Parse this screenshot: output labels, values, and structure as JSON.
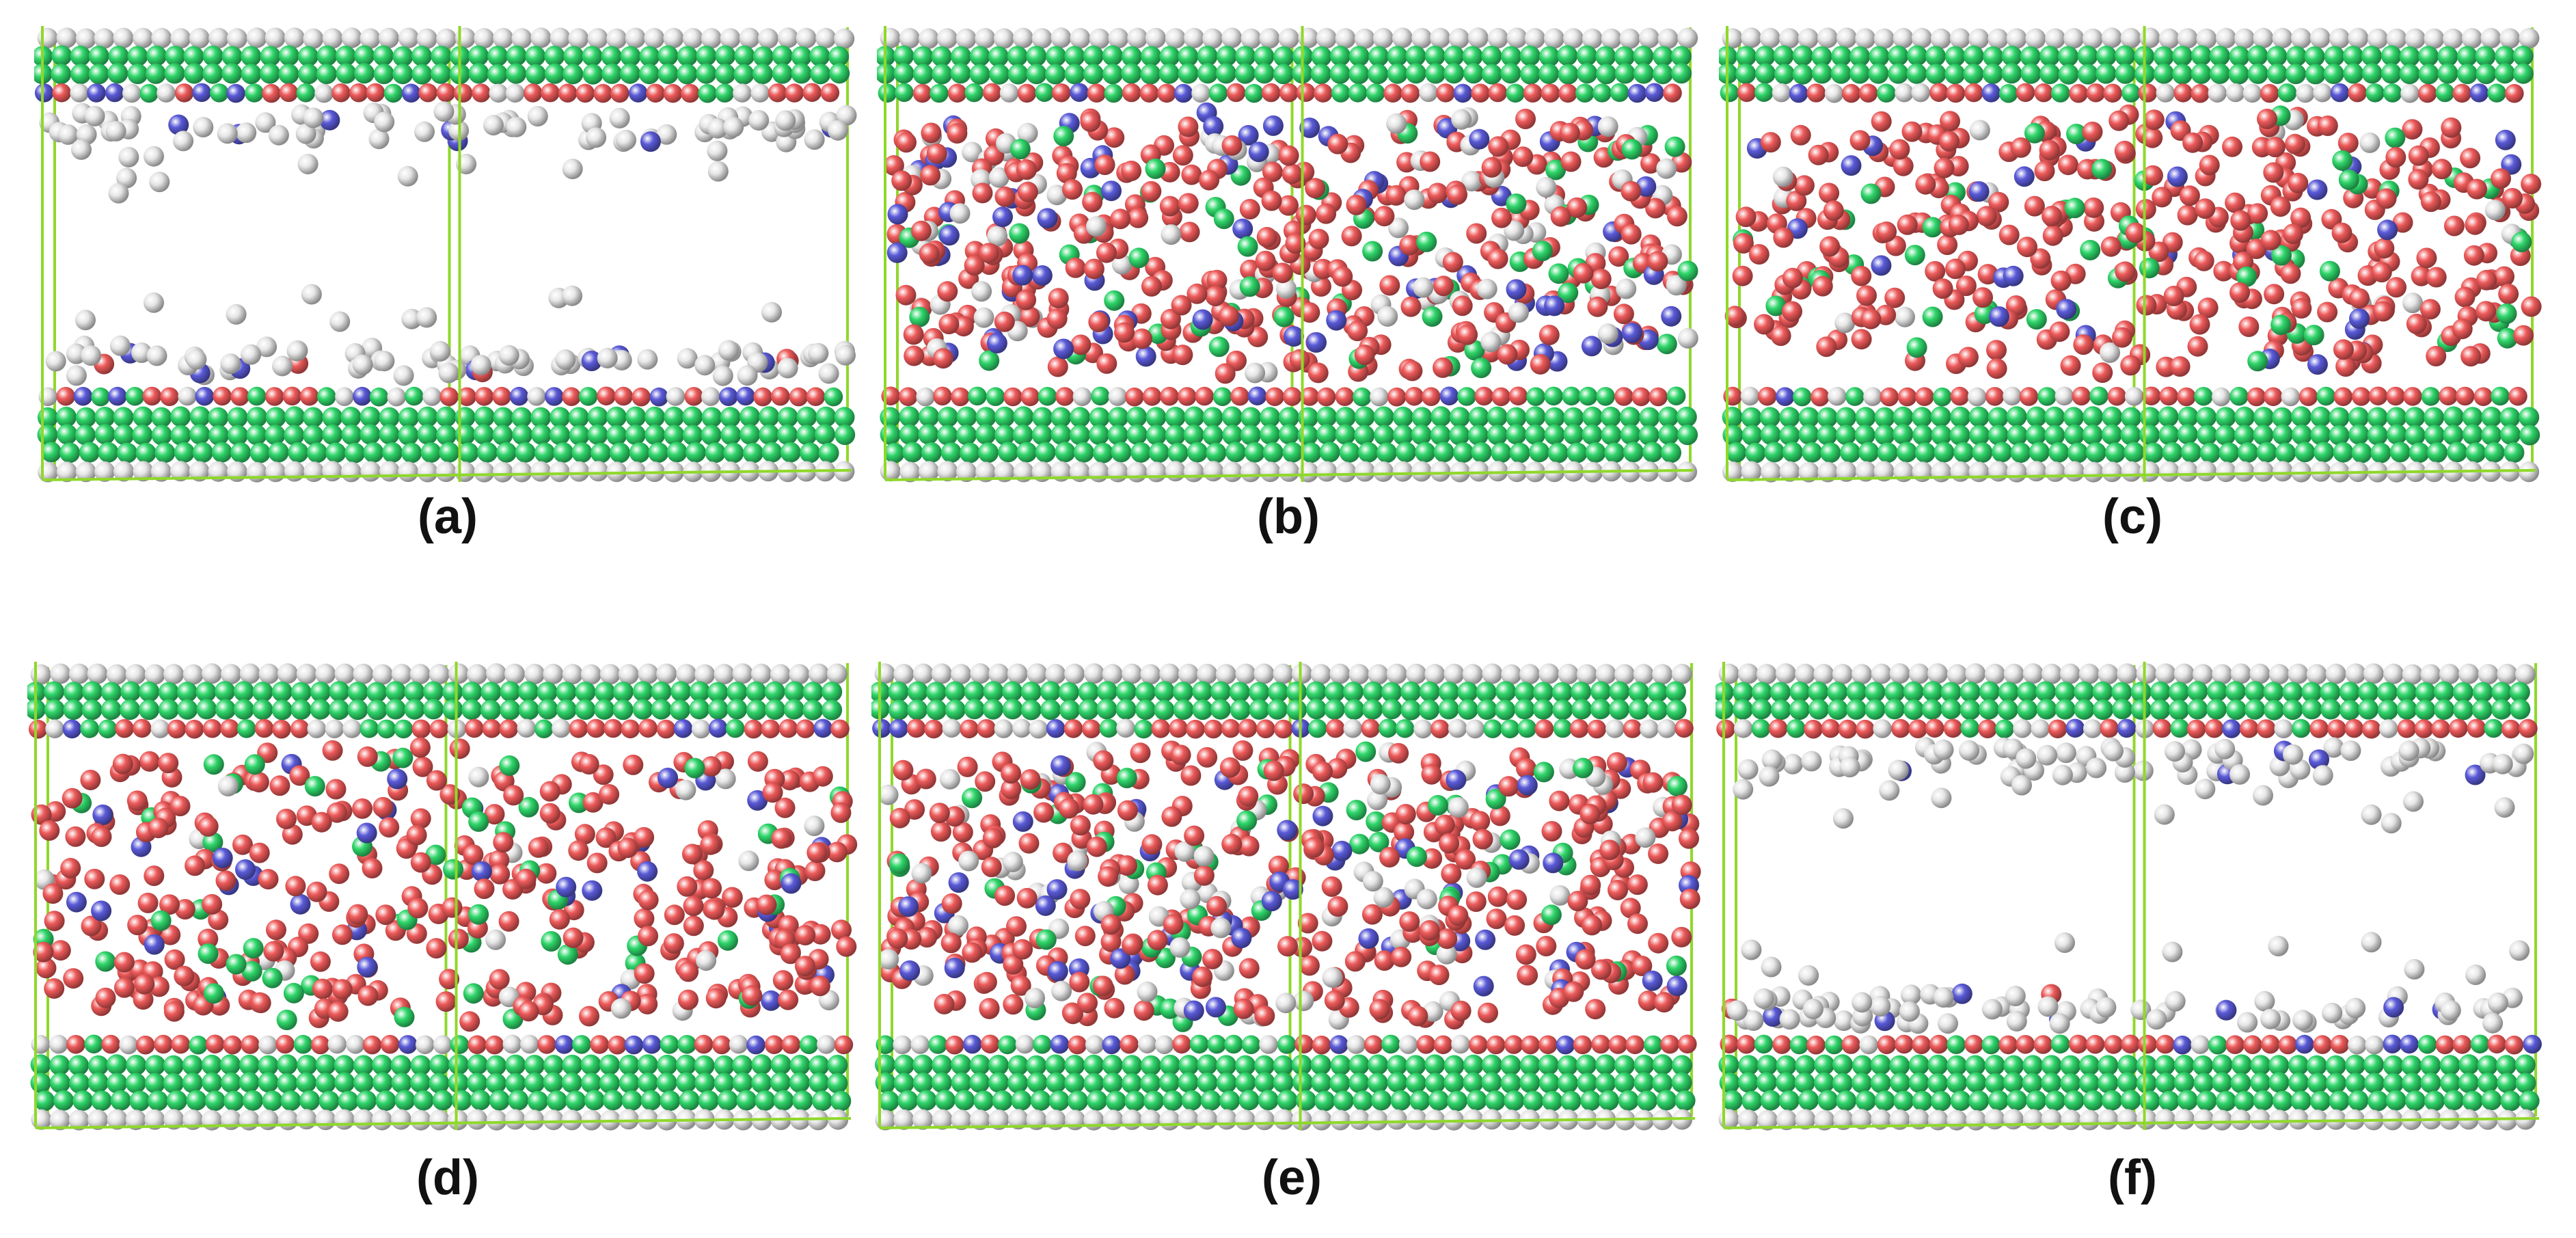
{
  "figure": {
    "panels": [
      {
        "id": "a",
        "label": "(a)",
        "gap_fill": "sparse-white"
      },
      {
        "id": "b",
        "label": "(b)",
        "gap_fill": "dense-mixed"
      },
      {
        "id": "c",
        "label": "(c)",
        "gap_fill": "red-green"
      },
      {
        "id": "d",
        "label": "(d)",
        "gap_fill": "red-green"
      },
      {
        "id": "e",
        "label": "(e)",
        "gap_fill": "dense-mixed"
      },
      {
        "id": "f",
        "label": "(f)",
        "gap_fill": "sparse-white"
      }
    ],
    "colors": {
      "white_atom": "#e6e6e6",
      "green_atom": "#2fd66a",
      "red_atom": "#ee5a5a",
      "blue_atom": "#5a5ad8",
      "box_edge": "#8fd82a"
    }
  }
}
